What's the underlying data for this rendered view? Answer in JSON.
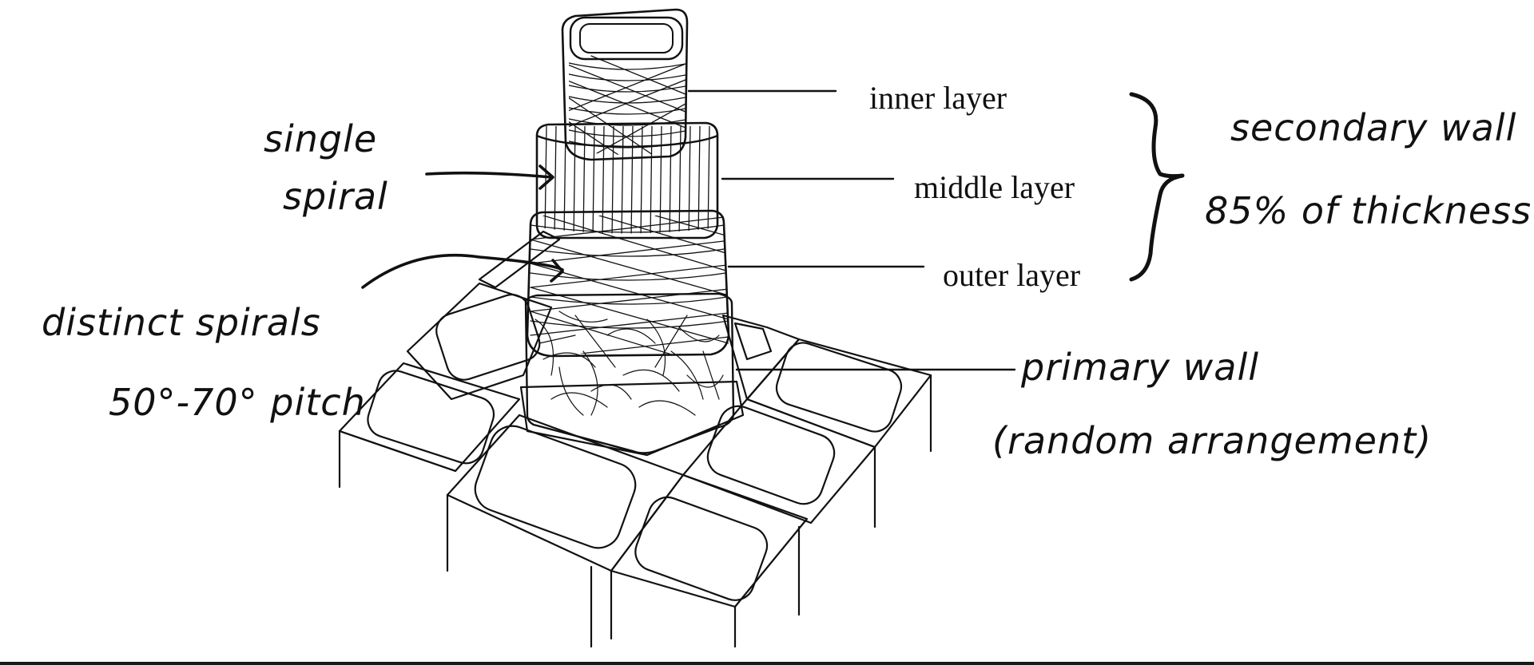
{
  "labels": {
    "inner_layer": "inner layer",
    "middle_layer": "middle layer",
    "outer_layer": "outer layer",
    "secondary_wall_line1": "secondary wall",
    "secondary_wall_line2": "85% of thickness",
    "single_spiral_line1": "single",
    "single_spiral_line2": "spiral",
    "distinct_spirals_line1": "distinct spirals",
    "distinct_spirals_line2": "50°-70° pitch",
    "primary_wall_line1": "primary wall",
    "primary_wall_line2": "(random arrangement)"
  },
  "colors": {
    "ink": "#111111",
    "background": "#ffffff"
  }
}
